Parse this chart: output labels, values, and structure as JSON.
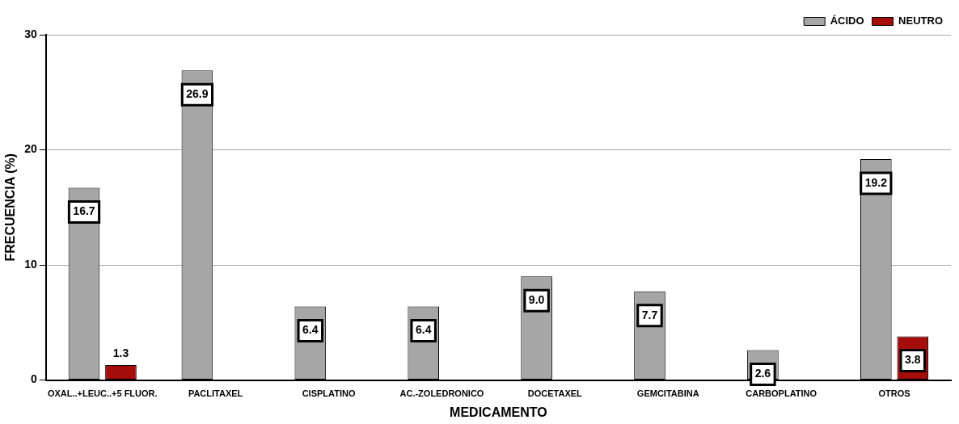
{
  "chart_data": {
    "type": "bar",
    "xlabel": "MEDICAMENTO",
    "ylabel": "FRECUENCIA (%)",
    "categories": [
      "OXAL..+LEUC..+5 FLUOR.",
      "PACLITAXEL",
      "CISPLATINO",
      "AC.-ZOLEDRONICO",
      "DOCETAXEL",
      "GEMCITABINA",
      "CARBOPLATINO",
      "OTROS"
    ],
    "series": [
      {
        "name": "ÁCIDO",
        "color": "#a6a6a6",
        "values": [
          16.7,
          26.9,
          6.4,
          6.4,
          9.0,
          7.7,
          2.6,
          19.2
        ],
        "value_labels": [
          "16.7",
          "26.9",
          "6.4",
          "6.4",
          "9.0",
          "7.7",
          "2.6",
          "19.2"
        ]
      },
      {
        "name": "NEUTRO",
        "color": "#a50d0d",
        "values": [
          1.3,
          null,
          null,
          null,
          null,
          null,
          null,
          3.8
        ],
        "value_labels": [
          "1.3",
          null,
          null,
          null,
          null,
          null,
          null,
          "3.8"
        ]
      }
    ],
    "ylim": [
      0,
      30
    ],
    "yticks": [
      0,
      10,
      20,
      30
    ],
    "grid": "y",
    "legend": "top right"
  }
}
